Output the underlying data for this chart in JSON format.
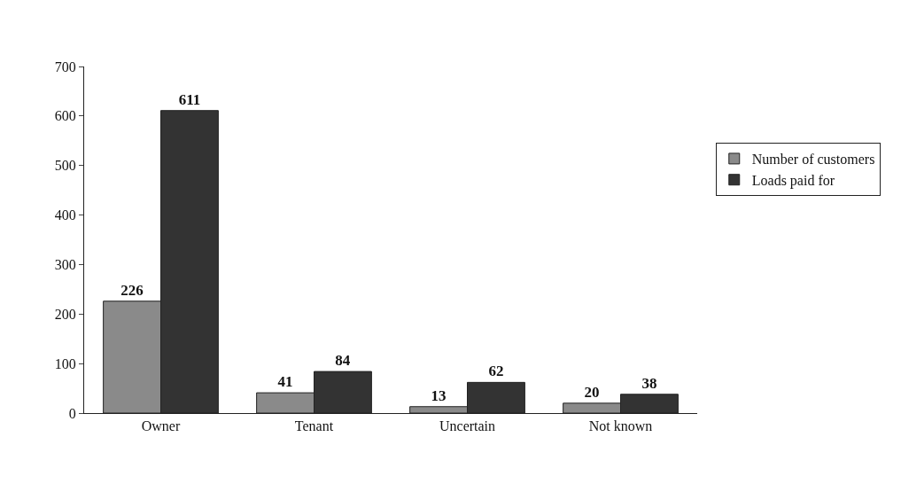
{
  "chart_data": {
    "type": "bar",
    "categories": [
      "Owner",
      "Tenant",
      "Uncertain",
      "Not known"
    ],
    "series": [
      {
        "name": "Number of customers",
        "color": "#8a8a8a",
        "values": [
          226,
          41,
          13,
          20
        ]
      },
      {
        "name": "Loads paid for",
        "color": "#333333",
        "values": [
          611,
          84,
          62,
          38
        ]
      }
    ],
    "ylim": [
      0,
      700
    ],
    "yticks": [
      0,
      100,
      200,
      300,
      400,
      500,
      600,
      700
    ],
    "grid": false,
    "legend": "right",
    "data_labels": true
  }
}
